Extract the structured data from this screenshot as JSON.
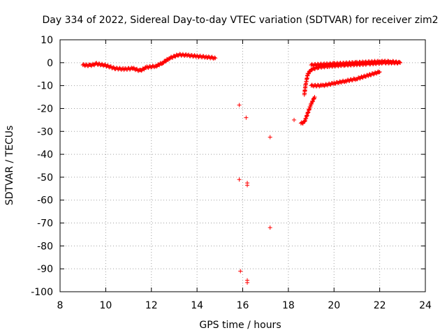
{
  "chart_data": {
    "type": "scatter",
    "title": "Day 334 of 2022, Sidereal Day-to-day VTEC variation (SDTVAR) for receiver zim2",
    "xlabel": "GPS time / hours",
    "ylabel": "SDTVAR / TECUs",
    "xlim": [
      8,
      24
    ],
    "ylim": [
      -100,
      10
    ],
    "xticks": [
      8,
      10,
      12,
      14,
      16,
      18,
      20,
      22,
      24
    ],
    "yticks": [
      10,
      0,
      -10,
      -20,
      -30,
      -40,
      -50,
      -60,
      -70,
      -80,
      -90,
      -100
    ],
    "grid": true,
    "marker": "+",
    "color": "#ff0000",
    "dense_tracks": [
      {
        "name": "morning-arc",
        "points": [
          [
            9.0,
            -1
          ],
          [
            9.3,
            -1.2
          ],
          [
            9.6,
            -0.5
          ],
          [
            10.0,
            -1.2
          ],
          [
            10.4,
            -2.5
          ],
          [
            10.8,
            -2.8
          ],
          [
            11.2,
            -2.5
          ],
          [
            11.5,
            -3.5
          ],
          [
            11.8,
            -2.0
          ],
          [
            12.2,
            -1.5
          ],
          [
            12.5,
            0
          ],
          [
            12.8,
            2
          ],
          [
            13.2,
            3.5
          ],
          [
            13.6,
            3.2
          ],
          [
            14.0,
            2.8
          ],
          [
            14.4,
            2.5
          ],
          [
            14.8,
            2.0
          ]
        ]
      },
      {
        "name": "evening-arc-upper",
        "points": [
          [
            18.7,
            -14
          ],
          [
            18.75,
            -10
          ],
          [
            18.85,
            -5
          ],
          [
            19.0,
            -3
          ],
          [
            19.3,
            -2
          ],
          [
            19.8,
            -1.5
          ],
          [
            20.5,
            -1
          ],
          [
            21.5,
            -0.5
          ],
          [
            22.2,
            0
          ],
          [
            22.9,
            0
          ]
        ]
      },
      {
        "name": "evening-arc-lower",
        "points": [
          [
            18.55,
            -26.5
          ],
          [
            18.7,
            -26
          ],
          [
            18.85,
            -22
          ],
          [
            19.0,
            -18
          ],
          [
            19.15,
            -15
          ]
        ]
      },
      {
        "name": "evening-arc-mid",
        "points": [
          [
            19.0,
            -10
          ],
          [
            19.5,
            -10
          ],
          [
            20.0,
            -9
          ],
          [
            20.5,
            -8
          ],
          [
            21.0,
            -7
          ],
          [
            21.5,
            -5.5
          ],
          [
            22.0,
            -4
          ]
        ]
      },
      {
        "name": "evening-arc-top",
        "points": [
          [
            19.0,
            -1
          ],
          [
            20.0,
            -0.5
          ],
          [
            21.0,
            0
          ],
          [
            22.0,
            0.5
          ],
          [
            22.5,
            0.5
          ],
          [
            22.9,
            0
          ]
        ]
      }
    ],
    "outliers": [
      [
        15.85,
        -18.5
      ],
      [
        16.15,
        -24
      ],
      [
        15.85,
        -51
      ],
      [
        16.2,
        -52.5
      ],
      [
        16.2,
        -53.5
      ],
      [
        15.9,
        -91
      ],
      [
        16.2,
        -95
      ],
      [
        16.2,
        -96
      ],
      [
        17.2,
        -32.5
      ],
      [
        17.2,
        -72
      ],
      [
        18.25,
        -25
      ]
    ]
  }
}
